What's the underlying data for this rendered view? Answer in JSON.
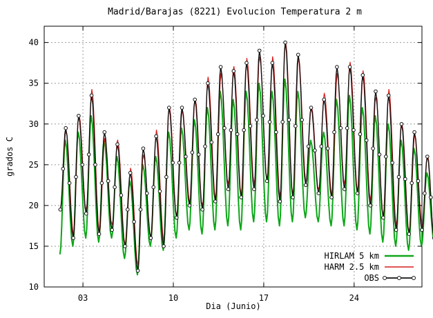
{
  "chart_data": {
    "type": "line",
    "title": "Madrid/Barajas (8221) Evolucion Temperatura  2 m",
    "xlabel": "Dia (Junio)",
    "ylabel": "grados C",
    "x_unit": "day of June",
    "xlim": [
      0,
      29.25
    ],
    "ylim": [
      10,
      42
    ],
    "x_ticks": [
      {
        "value": 3,
        "label": "03"
      },
      {
        "value": 10,
        "label": "10"
      },
      {
        "value": 17,
        "label": "17"
      },
      {
        "value": 24,
        "label": "24"
      }
    ],
    "y_ticks": [
      10,
      15,
      20,
      25,
      30,
      35,
      40
    ],
    "grid": true,
    "legend_position": "bottom-right",
    "days": {
      "start": 1,
      "min": [
        19.5,
        16,
        19,
        16.5,
        17,
        15,
        12,
        16,
        15,
        18.5,
        20,
        19.5,
        20.5,
        22,
        21,
        22,
        23,
        20.5,
        21,
        22.5,
        21.5,
        21,
        22,
        21.5,
        20,
        18.5,
        17,
        16.5,
        17
      ],
      "max": [
        29.5,
        31,
        33.5,
        29,
        27.5,
        24,
        27,
        28.5,
        32,
        32,
        33,
        35,
        37,
        36.5,
        37.5,
        39,
        37.5,
        40,
        38.5,
        32,
        33,
        37,
        37,
        36,
        34,
        33.5,
        30,
        29,
        26
      ],
      "hirlam_min": [
        14,
        15,
        16,
        15.5,
        16,
        13.5,
        11.5,
        15,
        14.5,
        16,
        17,
        16.5,
        17,
        17.5,
        17,
        18,
        18,
        17.5,
        18,
        18.5,
        18,
        17.5,
        17.5,
        17,
        16.5,
        15.5,
        15,
        14.5,
        15
      ],
      "hirlam_max": [
        28,
        29,
        31,
        28,
        26,
        23,
        25,
        26,
        29,
        29.5,
        30.5,
        32,
        34,
        33,
        34,
        35,
        34,
        35.5,
        34,
        28,
        29,
        33,
        33.5,
        32,
        31,
        30,
        28,
        27,
        24
      ],
      "end_value": 16
    },
    "series": [
      {
        "name": "HIRLAM 5 km",
        "color": "#0ca617",
        "line_width": 2,
        "markers": false
      },
      {
        "name": "HARM 2.5 km",
        "color": "#d61a1a",
        "line_width": 1.2,
        "markers": false
      },
      {
        "name": "OBS",
        "color": "#111111",
        "line_width": 1.4,
        "markers": true
      }
    ]
  }
}
